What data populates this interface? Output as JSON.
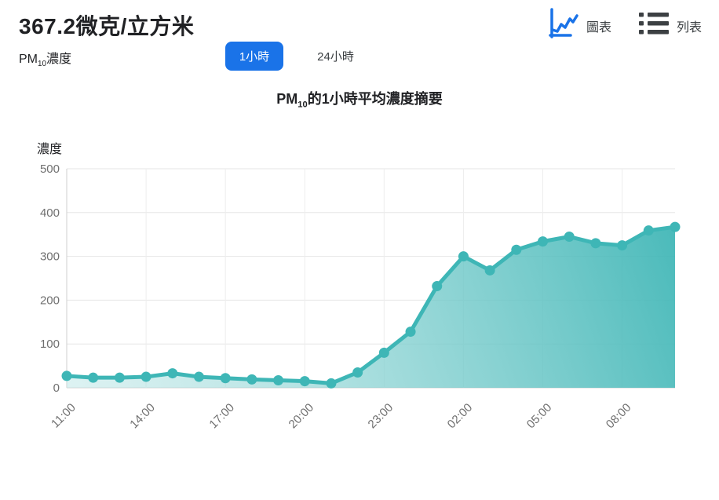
{
  "header": {
    "value": "367.2微克/立方米",
    "pollutant": {
      "prefix": "PM",
      "sub": "10",
      "suffix": "濃度"
    },
    "tabs": [
      {
        "label": "1小時",
        "active": true
      },
      {
        "label": "24小時",
        "active": false
      }
    ],
    "view_toggle": [
      {
        "label": "圖表",
        "icon": "line-chart-icon",
        "active": true
      },
      {
        "label": "列表",
        "icon": "list-icon",
        "active": false
      }
    ]
  },
  "chart": {
    "title": {
      "prefix": "PM",
      "sub": "10",
      "suffix": "的1小時平均濃度摘要"
    },
    "ylabel": "濃度"
  },
  "chart_data": {
    "type": "area",
    "title": "PM10的1小時平均濃度摘要",
    "ylabel": "濃度",
    "ylim": [
      0,
      500
    ],
    "grid": true,
    "x": [
      "11:00",
      "12:00",
      "13:00",
      "14:00",
      "15:00",
      "16:00",
      "17:00",
      "18:00",
      "19:00",
      "20:00",
      "21:00",
      "22:00",
      "23:00",
      "00:00",
      "01:00",
      "02:00",
      "03:00",
      "04:00",
      "05:00",
      "06:00",
      "07:00",
      "08:00",
      "09:00",
      "10:00"
    ],
    "values": [
      27,
      23,
      23,
      25,
      33,
      25,
      22,
      19,
      17,
      15,
      10,
      35,
      80,
      128,
      232,
      300,
      268,
      315,
      334,
      345,
      330,
      325,
      359,
      367.2
    ],
    "x_tick_labels": [
      "11:00",
      "14:00",
      "17:00",
      "20:00",
      "23:00",
      "02:00",
      "05:00",
      "08:00"
    ],
    "x_tick_indices": [
      0,
      3,
      6,
      9,
      12,
      15,
      18,
      21
    ],
    "y_ticks": [
      0,
      100,
      200,
      300,
      400,
      500
    ],
    "line_color": "#3eb6b6",
    "marker_color": "#3eb6b6",
    "area_gradient_start": "rgba(58,180,180,0.95)",
    "area_gradient_end": "rgba(194,232,232,0.55)",
    "grid_color": "#e6e6e6",
    "axis_color": "#cfcfcf",
    "tick_text_color": "#6f6f6f"
  },
  "colors": {
    "accent_blue": "#1a73e8",
    "text_dark": "#202124",
    "text_gray": "#3c4043"
  }
}
